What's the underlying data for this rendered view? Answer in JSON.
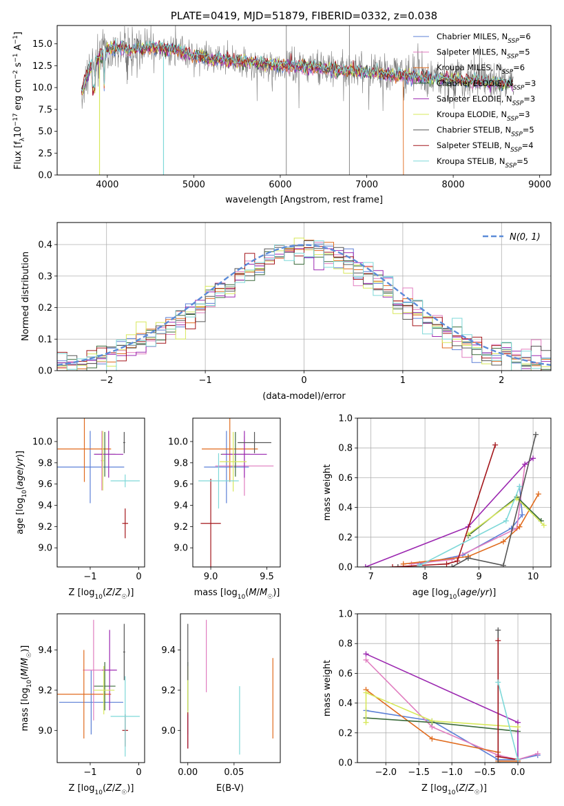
{
  "colors": {
    "chabrier_miles": "#5b7fd6",
    "salpeter_miles": "#e07cbf",
    "kroupa_miles": "#e06a1c",
    "chabrier_elodie": "#3a6a3a",
    "salpeter_elodie": "#9b27b0",
    "kroupa_elodie": "#d7e85a",
    "chabrier_stelib": "#555555",
    "salpeter_stelib": "#a3151a",
    "kroupa_stelib": "#7dd8d8",
    "gaussian": "#5b8bd8"
  },
  "chart_data": [
    {
      "id": "spectrum",
      "type": "line",
      "title": "PLATE=0419, MJD=51879, FIBERID=0332, z=0.038",
      "xlabel": "wavelength [Angstrom, rest frame]",
      "ylabel": "Flux [fλ10⁻¹⁷ erg cm⁻² s⁻¹ A⁻¹]",
      "xlim": [
        3420,
        9130
      ],
      "ylim": [
        0,
        17.1
      ],
      "xticks": [
        4000,
        5000,
        6000,
        7000,
        8000,
        9000
      ],
      "yticks": [
        0.0,
        2.5,
        5.0,
        7.5,
        10.0,
        12.5,
        15.0
      ],
      "legend_position": "top-right",
      "legend": [
        {
          "label": "Chabrier MILES, N",
          "sub": "SSP",
          "tail": "=6",
          "color_key": "chabrier_miles"
        },
        {
          "label": "Salpeter MILES, N",
          "sub": "SSP",
          "tail": "=5",
          "color_key": "salpeter_miles"
        },
        {
          "label": "Kroupa MILES, N",
          "sub": "SSP",
          "tail": "=6",
          "color_key": "kroupa_miles"
        },
        {
          "label": "Chabrier ELODIE, N",
          "sub": "SSP",
          "tail": "=3",
          "color_key": "chabrier_elodie"
        },
        {
          "label": "Salpeter ELODIE, N",
          "sub": "SSP",
          "tail": "=3",
          "color_key": "salpeter_elodie"
        },
        {
          "label": "Kroupa ELODIE, N",
          "sub": "SSP",
          "tail": "=3",
          "color_key": "kroupa_elodie"
        },
        {
          "label": "Chabrier STELIB, N",
          "sub": "SSP",
          "tail": "=5",
          "color_key": "chabrier_stelib"
        },
        {
          "label": "Salpeter STELIB, N",
          "sub": "SSP",
          "tail": "=4",
          "color_key": "salpeter_stelib"
        },
        {
          "label": "Kroupa STELIB, N",
          "sub": "SSP",
          "tail": "=5",
          "color_key": "kroupa_stelib"
        }
      ],
      "continuum": [
        [
          3700,
          9.5
        ],
        [
          3800,
          12.2
        ],
        [
          3900,
          13.3
        ],
        [
          4000,
          14.3
        ],
        [
          4100,
          14.6
        ],
        [
          4300,
          14.4
        ],
        [
          4500,
          14.6
        ],
        [
          4800,
          14.3
        ],
        [
          5000,
          13.6
        ],
        [
          5300,
          13.2
        ],
        [
          5600,
          12.9
        ],
        [
          6000,
          12.5
        ],
        [
          6300,
          12.4
        ],
        [
          6700,
          12.0
        ],
        [
          7000,
          11.8
        ],
        [
          7300,
          11.5
        ],
        [
          7600,
          11.2
        ],
        [
          8000,
          10.9
        ],
        [
          8300,
          10.7
        ],
        [
          8600,
          10.5
        ],
        [
          8700,
          10.4
        ]
      ]
    },
    {
      "id": "residuals",
      "type": "line",
      "xlabel": "(data-model)/error",
      "ylabel": "Normed distribution",
      "xlim": [
        -2.5,
        2.5
      ],
      "ylim": [
        0,
        0.47
      ],
      "xticks": [
        -2,
        -1,
        0,
        1,
        2
      ],
      "yticks": [
        0.0,
        0.1,
        0.2,
        0.3,
        0.4
      ],
      "grid": true,
      "legend_position": "top-right",
      "legend_label": "N(0, 1)",
      "gaussian": {
        "mean": 0,
        "sigma": 1
      },
      "bins": {
        "start": -2.5,
        "width": 0.1,
        "count": 50
      }
    },
    {
      "id": "age-vs-z",
      "type": "scatter",
      "xlabel": "Z [log10(Z/Z☉)]",
      "ylabel": "age  [log10(age/yr)]",
      "xlim": [
        -1.68,
        0.12
      ],
      "ylim": [
        8.82,
        10.22
      ],
      "xticks": [
        -1,
        0
      ],
      "yticks": [
        9.0,
        9.2,
        9.4,
        9.6,
        9.8,
        10.0
      ],
      "points": [
        {
          "color_key": "chabrier_miles",
          "x": -1.0,
          "xe": 0.7,
          "y": 9.76,
          "ye": 0.34
        },
        {
          "color_key": "salpeter_miles",
          "x": -0.76,
          "xe": 0.02,
          "y": 9.82,
          "ye": 0.28
        },
        {
          "color_key": "kroupa_miles",
          "x": -1.12,
          "xe": 0.55,
          "y": 9.93,
          "ye": 0.31
        },
        {
          "color_key": "chabrier_elodie",
          "x": -0.7,
          "xe": 0.22,
          "y": 9.88,
          "ye": 0.21
        },
        {
          "color_key": "salpeter_elodie",
          "x": -0.62,
          "xe": 0.3,
          "y": 9.88,
          "ye": 0.22
        },
        {
          "color_key": "kroupa_elodie",
          "x": -0.74,
          "xe": 0.02,
          "y": 9.82,
          "ye": 0.28
        },
        {
          "color_key": "chabrier_stelib",
          "x": -0.3,
          "xe": 0.02,
          "y": 9.99,
          "ye": 0.1
        },
        {
          "color_key": "salpeter_stelib",
          "x": -0.28,
          "xe": 0.06,
          "y": 9.23,
          "ye": 0.14
        },
        {
          "color_key": "kroupa_stelib",
          "x": -0.28,
          "xe": 0.3,
          "y": 9.63,
          "ye": 0.06
        }
      ]
    },
    {
      "id": "age-vs-mass",
      "type": "scatter",
      "xlabel": "mass [log10(M/M☉)]",
      "ylabel": "",
      "xlim": [
        8.84,
        9.62
      ],
      "ylim": [
        8.82,
        10.22
      ],
      "xticks": [
        9.0,
        9.5
      ],
      "yticks": [
        9.0,
        9.2,
        9.4,
        9.6,
        9.8,
        10.0
      ],
      "points": [
        {
          "color_key": "chabrier_miles",
          "x": 9.14,
          "xe": 0.2,
          "y": 9.76,
          "ye": 0.34
        },
        {
          "color_key": "salpeter_miles",
          "x": 9.3,
          "xe": 0.26,
          "y": 9.77,
          "ye": 0.28
        },
        {
          "color_key": "kroupa_miles",
          "x": 9.17,
          "xe": 0.25,
          "y": 9.93,
          "ye": 0.31
        },
        {
          "color_key": "chabrier_elodie",
          "x": 9.22,
          "xe": 0.13,
          "y": 9.88,
          "ye": 0.21
        },
        {
          "color_key": "salpeter_elodie",
          "x": 9.3,
          "xe": 0.2,
          "y": 9.88,
          "ye": 0.22
        },
        {
          "color_key": "kroupa_elodie",
          "x": 9.2,
          "xe": 0.12,
          "y": 9.81,
          "ye": 0.28
        },
        {
          "color_key": "chabrier_stelib",
          "x": 9.39,
          "xe": 0.15,
          "y": 9.99,
          "ye": 0.1
        },
        {
          "color_key": "salpeter_stelib",
          "x": 9.0,
          "xe": 0.09,
          "y": 9.23,
          "ye": 0.42
        },
        {
          "color_key": "kroupa_stelib",
          "x": 9.07,
          "xe": 0.18,
          "y": 9.63,
          "ye": 0.26
        }
      ]
    },
    {
      "id": "weight-vs-age",
      "type": "line",
      "xlabel": "age  [log10(age/yr)]",
      "ylabel": "mass weight",
      "xlim": [
        6.75,
        10.33
      ],
      "ylim": [
        0,
        1.0
      ],
      "xticks": [
        7,
        8,
        9,
        10
      ],
      "yticks": [
        0.0,
        0.2,
        0.4,
        0.6,
        0.8,
        1.0
      ],
      "grid": true,
      "series": [
        {
          "color_key": "chabrier_miles",
          "points": [
            [
              7.9,
              0.02
            ],
            [
              8.7,
              0.08
            ],
            [
              9.6,
              0.26
            ],
            [
              9.8,
              0.35
            ],
            [
              9.75,
              0.54
            ]
          ]
        },
        {
          "color_key": "salpeter_miles",
          "points": [
            [
              7.75,
              0.02
            ],
            [
              8.5,
              0.05
            ],
            [
              9.7,
              0.26
            ],
            [
              9.85,
              0.69
            ]
          ]
        },
        {
          "color_key": "kroupa_miles",
          "points": [
            [
              7.6,
              0.02
            ],
            [
              8.8,
              0.07
            ],
            [
              9.45,
              0.17
            ],
            [
              9.75,
              0.27
            ],
            [
              10.1,
              0.49
            ]
          ]
        },
        {
          "color_key": "chabrier_elodie",
          "points": [
            [
              8.8,
              0.21
            ],
            [
              9.7,
              0.47
            ],
            [
              10.15,
              0.31
            ]
          ]
        },
        {
          "color_key": "salpeter_elodie",
          "points": [
            [
              6.9,
              0.0
            ],
            [
              8.8,
              0.27
            ],
            [
              9.85,
              0.69
            ],
            [
              10.0,
              0.73
            ]
          ]
        },
        {
          "color_key": "kroupa_elodie",
          "points": [
            [
              8.8,
              0.22
            ],
            [
              9.7,
              0.46
            ],
            [
              10.2,
              0.28
            ]
          ]
        },
        {
          "color_key": "chabrier_stelib",
          "points": [
            [
              7.5,
              0.0
            ],
            [
              8.5,
              0.0
            ],
            [
              8.8,
              0.06
            ],
            [
              9.45,
              0.01
            ],
            [
              10.05,
              0.89
            ]
          ]
        },
        {
          "color_key": "salpeter_stelib",
          "points": [
            [
              7.4,
              0.0
            ],
            [
              8.4,
              0.02
            ],
            [
              8.6,
              0.04
            ],
            [
              9.3,
              0.82
            ]
          ]
        },
        {
          "color_key": "kroupa_stelib",
          "points": [
            [
              7.9,
              0.01
            ],
            [
              9.5,
              0.31
            ],
            [
              9.75,
              0.54
            ]
          ]
        }
      ]
    },
    {
      "id": "mass-vs-z",
      "type": "scatter",
      "xlabel": "Z [log10(Z/Z☉)]",
      "ylabel": "mass [log10(M/M☉)]",
      "xlim": [
        -1.68,
        0.12
      ],
      "ylim": [
        8.84,
        9.58
      ],
      "xticks": [
        -1,
        0
      ],
      "yticks": [
        9.0,
        9.2,
        9.4
      ],
      "points": [
        {
          "color_key": "chabrier_miles",
          "x": -0.98,
          "xe": 0.66,
          "y": 9.14,
          "ye": 0.16
        },
        {
          "color_key": "salpeter_miles",
          "x": -0.93,
          "xe": 0.22,
          "y": 9.3,
          "ye": 0.25
        },
        {
          "color_key": "kroupa_miles",
          "x": -1.13,
          "xe": 0.56,
          "y": 9.18,
          "ye": 0.22
        },
        {
          "color_key": "chabrier_elodie",
          "x": -0.7,
          "xe": 0.22,
          "y": 9.22,
          "ye": 0.12
        },
        {
          "color_key": "salpeter_elodie",
          "x": -0.6,
          "xe": 0.15,
          "y": 9.3,
          "ye": 0.2
        },
        {
          "color_key": "kroupa_elodie",
          "x": -0.72,
          "xe": 0.22,
          "y": 9.2,
          "ye": 0.12
        },
        {
          "color_key": "chabrier_stelib",
          "x": -0.3,
          "xe": 0.02,
          "y": 9.39,
          "ye": 0.14
        },
        {
          "color_key": "salpeter_stelib",
          "x": -0.28,
          "xe": 0.06,
          "y": 9.0,
          "ye": 0.08
        },
        {
          "color_key": "kroupa_stelib",
          "x": -0.28,
          "xe": 0.3,
          "y": 9.07,
          "ye": 0.2
        }
      ]
    },
    {
      "id": "mass-vs-ebv",
      "type": "scatter",
      "xlabel": "E(B-V)",
      "ylabel": "",
      "xlim": [
        -0.008,
        0.1
      ],
      "ylim": [
        8.84,
        9.58
      ],
      "xticks": [
        0.0,
        0.05
      ],
      "yticks": [
        9.0,
        9.2,
        9.4
      ],
      "points": [
        {
          "color_key": "chabrier_miles",
          "x": 0.0,
          "xe": 0,
          "y": 9.14,
          "ye": 0.16
        },
        {
          "color_key": "salpeter_miles",
          "x": 0.02,
          "xe": 0,
          "y": 9.37,
          "ye": 0.18
        },
        {
          "color_key": "kroupa_miles",
          "x": 0.092,
          "xe": 0,
          "y": 9.16,
          "ye": 0.2
        },
        {
          "color_key": "chabrier_elodie",
          "x": 0.0,
          "xe": 0,
          "y": 9.22,
          "ye": 0.12
        },
        {
          "color_key": "salpeter_elodie",
          "x": 0.0,
          "xe": 0,
          "y": 9.0,
          "ye": 0.09
        },
        {
          "color_key": "kroupa_elodie",
          "x": 0.0,
          "xe": 0,
          "y": 9.2,
          "ye": 0.12
        },
        {
          "color_key": "chabrier_stelib",
          "x": 0.0,
          "xe": 0,
          "y": 9.39,
          "ye": 0.14
        },
        {
          "color_key": "salpeter_stelib",
          "x": 0.0,
          "xe": 0,
          "y": 9.0,
          "ye": 0.09
        },
        {
          "color_key": "kroupa_stelib",
          "x": 0.056,
          "xe": 0,
          "y": 9.05,
          "ye": 0.17
        }
      ]
    },
    {
      "id": "weight-vs-z",
      "type": "line",
      "xlabel": "Z [log10(Z/Z☉)]",
      "ylabel": "mass weight",
      "xlim": [
        -2.43,
        0.5
      ],
      "ylim": [
        0,
        1.0
      ],
      "xticks": [
        -2.0,
        -1.5,
        -1.0,
        -0.5,
        0.0
      ],
      "yticks": [
        0.0,
        0.2,
        0.4,
        0.6,
        0.8,
        1.0
      ],
      "grid": true,
      "series": [
        {
          "color_key": "chabrier_miles",
          "points": [
            [
              -2.3,
              0.35
            ],
            [
              -1.3,
              0.28
            ],
            [
              -0.3,
              0.02
            ],
            [
              0.0,
              0.02
            ],
            [
              0.3,
              0.05
            ]
          ]
        },
        {
          "color_key": "salpeter_miles",
          "points": [
            [
              -2.3,
              0.69
            ],
            [
              -1.3,
              0.24
            ],
            [
              -0.3,
              0.05
            ],
            [
              0.0,
              0.02
            ],
            [
              0.3,
              0.06
            ]
          ]
        },
        {
          "color_key": "kroupa_miles",
          "points": [
            [
              -2.3,
              0.49
            ],
            [
              -1.3,
              0.16
            ],
            [
              -0.3,
              0.07
            ],
            [
              -0.3,
              0.01
            ],
            [
              0.0,
              0.01
            ]
          ]
        },
        {
          "color_key": "chabrier_elodie",
          "points": [
            [
              -2.3,
              0.3
            ],
            [
              -1.3,
              0.27
            ],
            [
              0.0,
              0.21
            ]
          ]
        },
        {
          "color_key": "salpeter_elodie",
          "points": [
            [
              -2.3,
              0.73
            ],
            [
              0.0,
              0.27
            ],
            [
              0.0,
              0.0
            ]
          ]
        },
        {
          "color_key": "kroupa_elodie",
          "points": [
            [
              -2.3,
              0.27
            ],
            [
              -2.3,
              0.47
            ],
            [
              -1.3,
              0.28
            ],
            [
              0.0,
              0.24
            ]
          ]
        },
        {
          "color_key": "chabrier_stelib",
          "points": [
            [
              -0.3,
              0.89
            ],
            [
              -0.3,
              0.0
            ],
            [
              0.0,
              0.0
            ]
          ]
        },
        {
          "color_key": "salpeter_stelib",
          "points": [
            [
              -0.3,
              0.82
            ],
            [
              -0.3,
              0.04
            ],
            [
              0.0,
              0.02
            ]
          ]
        },
        {
          "color_key": "kroupa_stelib",
          "points": [
            [
              -0.3,
              0.54
            ],
            [
              0.0,
              0.02
            ]
          ]
        }
      ]
    }
  ]
}
